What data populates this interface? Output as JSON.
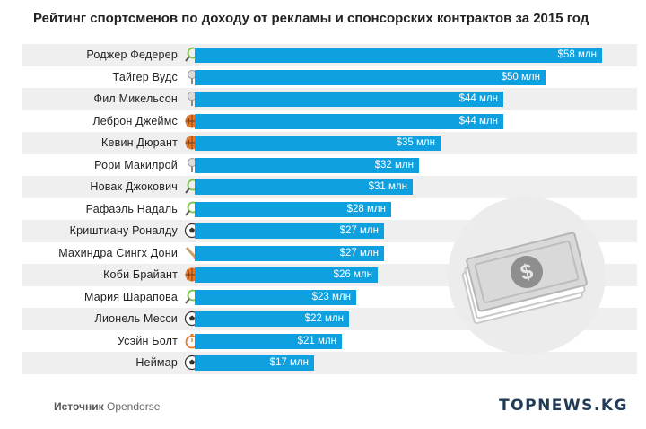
{
  "chart_data": {
    "type": "bar",
    "title": "Рейтинг спортсменов по доходу от рекламы и спонсорских контрактов за 2015 год",
    "unit": "млн долларов",
    "categories": [
      "Роджер Федерер",
      "Тайгер Вудс",
      "Фил Микельсон",
      "Леброн Джеймс",
      "Кевин Дюрант",
      "Рори Макилрой",
      "Новак Джокович",
      "Рафаэль Надаль",
      "Криштиану Роналду",
      "Махиндра Сингх Дони",
      "Коби Брайант",
      "Мария Шарапова",
      "Лионель Месси",
      "Усэйн Болт",
      "Неймар"
    ],
    "values": [
      58,
      50,
      44,
      44,
      35,
      32,
      31,
      28,
      27,
      27,
      26,
      23,
      22,
      21,
      17
    ],
    "value_labels": [
      "$58 млн",
      "$50 млн",
      "$44 млн",
      "$44 млн",
      "$35 млн",
      "$32 млн",
      "$31 млн",
      "$28 млн",
      "$27 млн",
      "$27 млн",
      "$26 млн",
      "$23 млн",
      "$22 млн",
      "$21 млн",
      "$17 млн"
    ],
    "sports": [
      "tennis-icon",
      "golf-icon",
      "golf-icon",
      "basketball-icon",
      "basketball-icon",
      "golf-icon",
      "tennis-icon",
      "tennis-icon",
      "soccer-icon",
      "cricket-icon",
      "basketball-icon",
      "tennis-icon",
      "soccer-icon",
      "stopwatch-icon",
      "soccer-icon"
    ],
    "xlim": [
      0,
      58
    ],
    "bar_color": "#0fa0e0"
  },
  "source": {
    "label": "Источник",
    "value": "Opendorse"
  },
  "logo": "TOPNEWS.KG"
}
